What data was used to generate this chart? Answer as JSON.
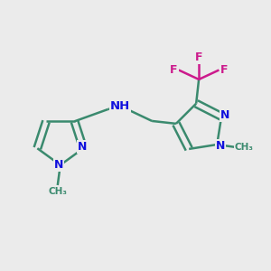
{
  "background_color": "#ebebeb",
  "bond_color": "#3a8a6e",
  "nitrogen_color": "#1010dd",
  "fluorine_color": "#cc1a8c",
  "line_width": 1.8,
  "figsize": [
    3.0,
    3.0
  ],
  "dpi": 100,
  "xlim": [
    0,
    10
  ],
  "ylim": [
    0,
    10
  ]
}
